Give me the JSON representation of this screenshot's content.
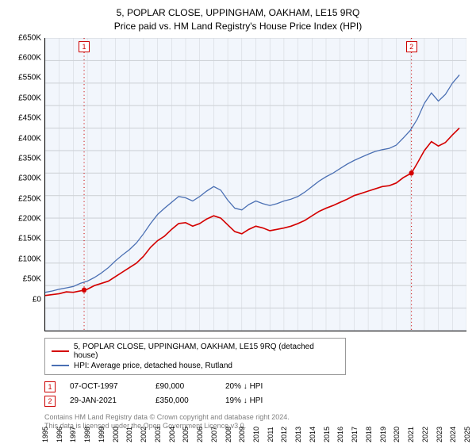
{
  "title_line1": "5, POPLAR CLOSE, UPPINGHAM, OAKHAM, LE15 9RQ",
  "title_line2": "Price paid vs. HM Land Registry's House Price Index (HPI)",
  "chart": {
    "type": "line",
    "background_color": "#ffffff",
    "plot_bg_color": "#f2f6fc",
    "grid_color": "#cfd3d8",
    "axis_color": "#000000",
    "yaxis": {
      "min": 0,
      "max": 650000,
      "step": 50000,
      "prefix": "£",
      "suffix": "K",
      "divisor": 1000,
      "tick_fontsize": 10
    },
    "xaxis": {
      "years": [
        1995,
        1996,
        1997,
        1998,
        1999,
        2000,
        2001,
        2002,
        2003,
        2004,
        2005,
        2006,
        2007,
        2008,
        2009,
        2010,
        2011,
        2012,
        2013,
        2014,
        2015,
        2016,
        2017,
        2018,
        2019,
        2020,
        2021,
        2022,
        2023,
        2024,
        2025
      ],
      "tick_fontsize": 9,
      "rotation_deg": -90
    },
    "reference_lines": [
      {
        "x": 1997.77,
        "color": "#cc0000",
        "label": "1"
      },
      {
        "x": 2021.08,
        "color": "#cc0000",
        "label": "2"
      }
    ],
    "series": [
      {
        "name": "series_price_paid",
        "label": "5, POPLAR CLOSE, UPPINGHAM, OAKHAM, LE15 9RQ (detached house)",
        "color": "#d40000",
        "line_width": 1.5,
        "points": [
          [
            1995.0,
            78000
          ],
          [
            1995.5,
            80000
          ],
          [
            1996.0,
            82000
          ],
          [
            1996.5,
            86000
          ],
          [
            1997.0,
            85000
          ],
          [
            1997.77,
            90000
          ],
          [
            1998.0,
            92000
          ],
          [
            1998.5,
            100000
          ],
          [
            1999.0,
            105000
          ],
          [
            1999.5,
            110000
          ],
          [
            2000.0,
            120000
          ],
          [
            2000.5,
            130000
          ],
          [
            2001.0,
            140000
          ],
          [
            2001.5,
            150000
          ],
          [
            2002.0,
            165000
          ],
          [
            2002.5,
            185000
          ],
          [
            2003.0,
            200000
          ],
          [
            2003.5,
            210000
          ],
          [
            2004.0,
            225000
          ],
          [
            2004.5,
            238000
          ],
          [
            2005.0,
            240000
          ],
          [
            2005.5,
            232000
          ],
          [
            2006.0,
            238000
          ],
          [
            2006.5,
            248000
          ],
          [
            2007.0,
            255000
          ],
          [
            2007.5,
            250000
          ],
          [
            2008.0,
            235000
          ],
          [
            2008.5,
            220000
          ],
          [
            2009.0,
            215000
          ],
          [
            2009.5,
            225000
          ],
          [
            2010.0,
            232000
          ],
          [
            2010.5,
            228000
          ],
          [
            2011.0,
            222000
          ],
          [
            2011.5,
            225000
          ],
          [
            2012.0,
            228000
          ],
          [
            2012.5,
            232000
          ],
          [
            2013.0,
            238000
          ],
          [
            2013.5,
            245000
          ],
          [
            2014.0,
            255000
          ],
          [
            2014.5,
            265000
          ],
          [
            2015.0,
            272000
          ],
          [
            2015.5,
            278000
          ],
          [
            2016.0,
            285000
          ],
          [
            2016.5,
            292000
          ],
          [
            2017.0,
            300000
          ],
          [
            2017.5,
            305000
          ],
          [
            2018.0,
            310000
          ],
          [
            2018.5,
            315000
          ],
          [
            2019.0,
            320000
          ],
          [
            2019.5,
            322000
          ],
          [
            2020.0,
            328000
          ],
          [
            2020.5,
            340000
          ],
          [
            2021.08,
            350000
          ],
          [
            2021.5,
            372000
          ],
          [
            2022.0,
            400000
          ],
          [
            2022.5,
            420000
          ],
          [
            2023.0,
            410000
          ],
          [
            2023.5,
            418000
          ],
          [
            2024.0,
            435000
          ],
          [
            2024.5,
            450000
          ]
        ],
        "markers": [
          {
            "x": 1997.77,
            "y": 90000
          },
          {
            "x": 2021.08,
            "y": 350000
          }
        ]
      },
      {
        "name": "series_hpi",
        "label": "HPI: Average price, detached house, Rutland",
        "color": "#4a6fb3",
        "line_width": 1.2,
        "points": [
          [
            1995.0,
            85000
          ],
          [
            1995.5,
            88000
          ],
          [
            1996.0,
            92000
          ],
          [
            1996.5,
            95000
          ],
          [
            1997.0,
            98000
          ],
          [
            1997.5,
            105000
          ],
          [
            1998.0,
            110000
          ],
          [
            1998.5,
            118000
          ],
          [
            1999.0,
            128000
          ],
          [
            1999.5,
            140000
          ],
          [
            2000.0,
            155000
          ],
          [
            2000.5,
            168000
          ],
          [
            2001.0,
            180000
          ],
          [
            2001.5,
            195000
          ],
          [
            2002.0,
            215000
          ],
          [
            2002.5,
            238000
          ],
          [
            2003.0,
            258000
          ],
          [
            2003.5,
            272000
          ],
          [
            2004.0,
            285000
          ],
          [
            2004.5,
            298000
          ],
          [
            2005.0,
            295000
          ],
          [
            2005.5,
            288000
          ],
          [
            2006.0,
            298000
          ],
          [
            2006.5,
            310000
          ],
          [
            2007.0,
            320000
          ],
          [
            2007.5,
            312000
          ],
          [
            2008.0,
            290000
          ],
          [
            2008.5,
            272000
          ],
          [
            2009.0,
            268000
          ],
          [
            2009.5,
            280000
          ],
          [
            2010.0,
            288000
          ],
          [
            2010.5,
            282000
          ],
          [
            2011.0,
            278000
          ],
          [
            2011.5,
            282000
          ],
          [
            2012.0,
            288000
          ],
          [
            2012.5,
            292000
          ],
          [
            2013.0,
            298000
          ],
          [
            2013.5,
            308000
          ],
          [
            2014.0,
            320000
          ],
          [
            2014.5,
            332000
          ],
          [
            2015.0,
            342000
          ],
          [
            2015.5,
            350000
          ],
          [
            2016.0,
            360000
          ],
          [
            2016.5,
            370000
          ],
          [
            2017.0,
            378000
          ],
          [
            2017.5,
            385000
          ],
          [
            2018.0,
            392000
          ],
          [
            2018.5,
            398000
          ],
          [
            2019.0,
            402000
          ],
          [
            2019.5,
            405000
          ],
          [
            2020.0,
            412000
          ],
          [
            2020.5,
            428000
          ],
          [
            2021.0,
            445000
          ],
          [
            2021.5,
            470000
          ],
          [
            2022.0,
            505000
          ],
          [
            2022.5,
            528000
          ],
          [
            2023.0,
            510000
          ],
          [
            2023.5,
            525000
          ],
          [
            2024.0,
            550000
          ],
          [
            2024.5,
            568000
          ]
        ]
      }
    ]
  },
  "legend": {
    "border_color": "#999999",
    "items": [
      {
        "color": "#d40000",
        "text": "5, POPLAR CLOSE, UPPINGHAM, OAKHAM, LE15 9RQ (detached house)"
      },
      {
        "color": "#4a6fb3",
        "text": "HPI: Average price, detached house, Rutland"
      }
    ]
  },
  "marker_table": {
    "rows": [
      {
        "badge": "1",
        "badge_color": "#cc0000",
        "date": "07-OCT-1997",
        "price": "£90,000",
        "pct": "20% ↓ HPI"
      },
      {
        "badge": "2",
        "badge_color": "#cc0000",
        "date": "29-JAN-2021",
        "price": "£350,000",
        "pct": "19% ↓ HPI"
      }
    ]
  },
  "footnote_line1": "Contains HM Land Registry data © Crown copyright and database right 2024.",
  "footnote_line2": "This data is licensed under the Open Government Licence v3.0."
}
